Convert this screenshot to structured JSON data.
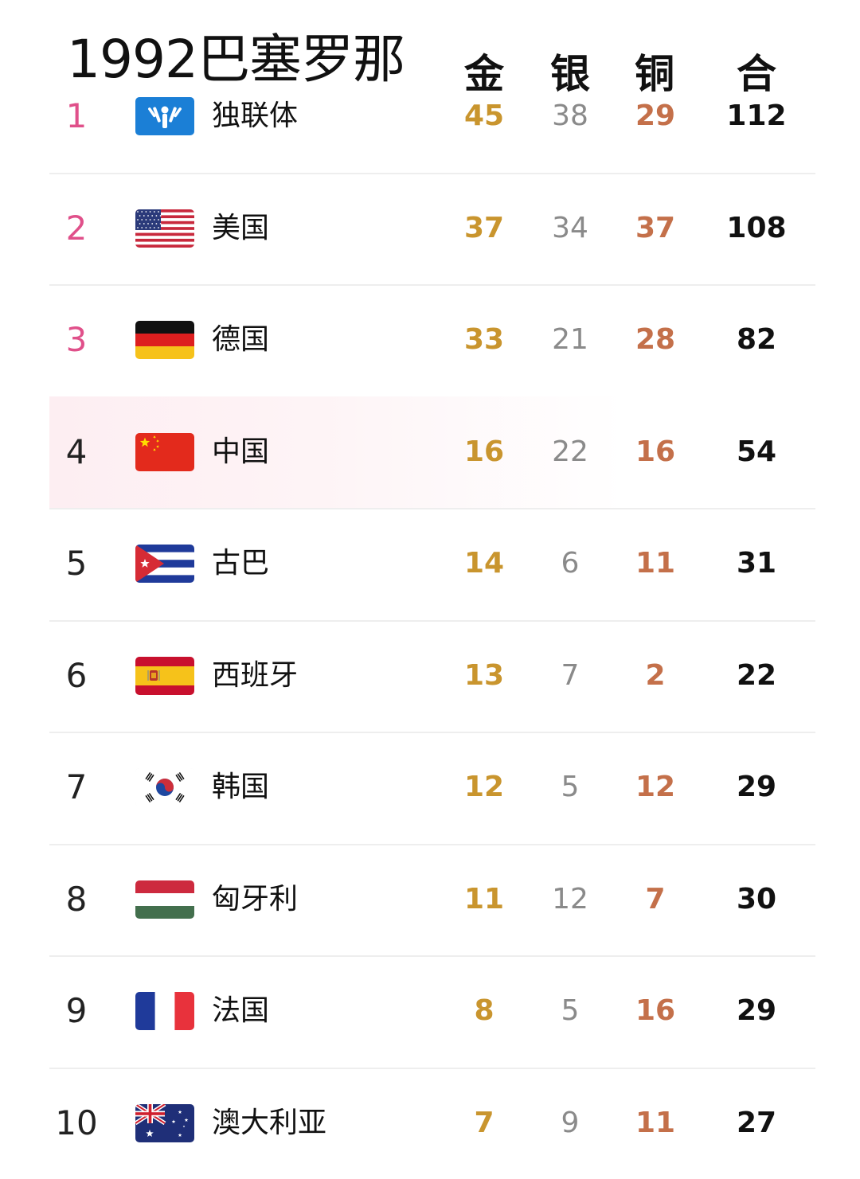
{
  "title": "1992巴塞罗那",
  "headers": {
    "gold": "金",
    "silver": "银",
    "bronze": "铜",
    "total": "合"
  },
  "colors": {
    "rank_top3": "#e0508a",
    "gold": "#c9952e",
    "silver": "#8a8a8a",
    "bronze": "#c4704a",
    "highlight_row": "#fdeef2"
  },
  "rows": [
    {
      "rank": "1",
      "country": "独联体",
      "flag": "cis-flag-icon",
      "gold": "45",
      "silver": "38",
      "bronze": "29",
      "total": "112"
    },
    {
      "rank": "2",
      "country": "美国",
      "flag": "usa-flag-icon",
      "gold": "37",
      "silver": "34",
      "bronze": "37",
      "total": "108"
    },
    {
      "rank": "3",
      "country": "德国",
      "flag": "germany-flag-icon",
      "gold": "33",
      "silver": "21",
      "bronze": "28",
      "total": "82"
    },
    {
      "rank": "4",
      "country": "中国",
      "flag": "china-flag-icon",
      "gold": "16",
      "silver": "22",
      "bronze": "16",
      "total": "54"
    },
    {
      "rank": "5",
      "country": "古巴",
      "flag": "cuba-flag-icon",
      "gold": "14",
      "silver": "6",
      "bronze": "11",
      "total": "31"
    },
    {
      "rank": "6",
      "country": "西班牙",
      "flag": "spain-flag-icon",
      "gold": "13",
      "silver": "7",
      "bronze": "2",
      "total": "22"
    },
    {
      "rank": "7",
      "country": "韩国",
      "flag": "korea-flag-icon",
      "gold": "12",
      "silver": "5",
      "bronze": "12",
      "total": "29"
    },
    {
      "rank": "8",
      "country": "匈牙利",
      "flag": "hungary-flag-icon",
      "gold": "11",
      "silver": "12",
      "bronze": "7",
      "total": "30"
    },
    {
      "rank": "9",
      "country": "法国",
      "flag": "france-flag-icon",
      "gold": "8",
      "silver": "5",
      "bronze": "16",
      "total": "29"
    },
    {
      "rank": "10",
      "country": "澳大利亚",
      "flag": "australia-flag-icon",
      "gold": "7",
      "silver": "9",
      "bronze": "11",
      "total": "27"
    }
  ]
}
